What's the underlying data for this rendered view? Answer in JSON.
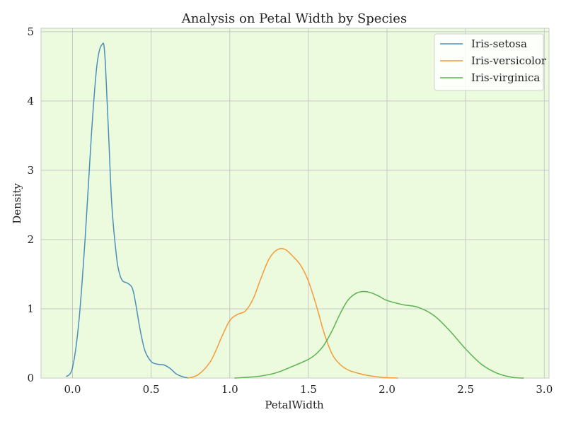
{
  "chart_data": {
    "type": "line",
    "title": "Analysis on Petal Width by Species",
    "xlabel": "PetalWidth",
    "ylabel": "Density",
    "xlim": [
      -0.2,
      3.03
    ],
    "ylim": [
      0,
      5.05
    ],
    "xticks": [
      0.0,
      0.5,
      1.0,
      1.5,
      2.0,
      2.5,
      3.0
    ],
    "xtick_labels": [
      "0.0",
      "0.5",
      "1.0",
      "1.5",
      "2.0",
      "2.5",
      "3.0"
    ],
    "yticks": [
      0,
      1,
      2,
      3,
      4,
      5
    ],
    "ytick_labels": [
      "0",
      "1",
      "2",
      "3",
      "4",
      "5"
    ],
    "grid": true,
    "background": "#ecfbde",
    "legend_position": "top-right",
    "series": [
      {
        "name": "Iris-setosa",
        "color": "#4c8fbd",
        "x": [
          -0.04,
          0.0,
          0.04,
          0.08,
          0.12,
          0.15,
          0.17,
          0.19,
          0.2,
          0.21,
          0.23,
          0.25,
          0.28,
          0.3,
          0.32,
          0.35,
          0.38,
          0.4,
          0.43,
          0.46,
          0.5,
          0.54,
          0.58,
          0.62,
          0.66,
          0.7,
          0.74
        ],
        "y": [
          0.02,
          0.15,
          0.8,
          2.0,
          3.5,
          4.4,
          4.72,
          4.82,
          4.8,
          4.5,
          3.5,
          2.5,
          1.75,
          1.5,
          1.4,
          1.37,
          1.3,
          1.1,
          0.7,
          0.4,
          0.24,
          0.2,
          0.19,
          0.14,
          0.06,
          0.02,
          0.0
        ]
      },
      {
        "name": "Iris-versicolor",
        "color": "#f59a36",
        "x": [
          0.73,
          0.8,
          0.88,
          0.95,
          1.0,
          1.05,
          1.1,
          1.15,
          1.2,
          1.25,
          1.3,
          1.35,
          1.4,
          1.45,
          1.5,
          1.55,
          1.6,
          1.65,
          1.7,
          1.75,
          1.8,
          1.85,
          1.9,
          1.95,
          2.0,
          2.07
        ],
        "y": [
          0.0,
          0.05,
          0.25,
          0.6,
          0.83,
          0.92,
          0.97,
          1.15,
          1.45,
          1.72,
          1.85,
          1.86,
          1.76,
          1.63,
          1.4,
          1.05,
          0.65,
          0.35,
          0.2,
          0.12,
          0.08,
          0.05,
          0.03,
          0.015,
          0.005,
          0.0
        ]
      },
      {
        "name": "Iris-virginica",
        "color": "#5bb44f",
        "x": [
          1.03,
          1.1,
          1.2,
          1.3,
          1.4,
          1.5,
          1.55,
          1.6,
          1.65,
          1.7,
          1.75,
          1.8,
          1.85,
          1.9,
          1.95,
          2.0,
          2.1,
          2.2,
          2.3,
          2.4,
          2.5,
          2.6,
          2.7,
          2.8,
          2.87
        ],
        "y": [
          0.0,
          0.01,
          0.03,
          0.08,
          0.17,
          0.27,
          0.35,
          0.48,
          0.68,
          0.92,
          1.12,
          1.22,
          1.25,
          1.23,
          1.18,
          1.12,
          1.06,
          1.02,
          0.9,
          0.68,
          0.42,
          0.2,
          0.07,
          0.01,
          0.0
        ]
      }
    ]
  }
}
